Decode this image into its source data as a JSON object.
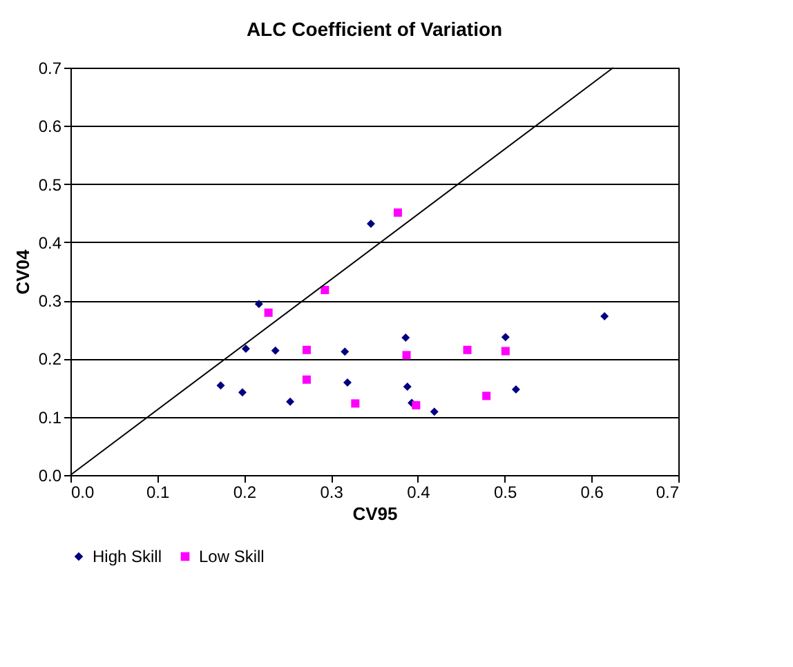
{
  "chart_data": {
    "type": "scatter",
    "title": "ALC Coefficient of Variation",
    "xlabel": "CV95",
    "ylabel": "CV04",
    "xlim": [
      0,
      0.7
    ],
    "xticks": [
      {
        "value": 0,
        "label": "0.0"
      },
      {
        "value": 0.1,
        "label": "0.1"
      },
      {
        "value": 0.2,
        "label": "0.2"
      },
      {
        "value": 0.3,
        "label": "0.3"
      },
      {
        "value": 0.4,
        "label": "0.4"
      },
      {
        "value": 0.5,
        "label": "0.5"
      },
      {
        "value": 0.6,
        "label": "0.6"
      },
      {
        "value": 0.7,
        "label": "0.7"
      }
    ],
    "ylim": [
      0,
      0.7
    ],
    "yticks": [
      {
        "value": 0,
        "label": "0.0"
      },
      0.1,
      0.2,
      0.3,
      0.4,
      0.5,
      0.6,
      0.7
    ],
    "grid": "y",
    "legend": "bottom",
    "series": [
      {
        "name": "High Skill",
        "color": "#000080",
        "marker": "diamond",
        "x": [
          0.346,
          0.217,
          0.202,
          0.236,
          0.316,
          0.386,
          0.173,
          0.198,
          0.253,
          0.319,
          0.388,
          0.393,
          0.419,
          0.615,
          0.501,
          0.513
        ],
        "values": [
          0.432,
          0.294,
          0.217,
          0.214,
          0.212,
          0.236,
          0.154,
          0.142,
          0.126,
          0.159,
          0.152,
          0.124,
          0.109,
          0.273,
          0.237,
          0.147
        ]
      },
      {
        "name": "Low Skill",
        "color": "#ff00ff",
        "marker": "square",
        "x": [
          0.377,
          0.293,
          0.228,
          0.272,
          0.387,
          0.272,
          0.328,
          0.398,
          0.457,
          0.501,
          0.479
        ],
        "values": [
          0.451,
          0.318,
          0.279,
          0.215,
          0.206,
          0.164,
          0.123,
          0.12,
          0.215,
          0.213,
          0.136
        ]
      },
      {
        "type": "line",
        "color": "#000000",
        "marker": "none",
        "line_style": "solid",
        "x": [
          0,
          0.625
        ],
        "values": [
          0,
          0.7
        ]
      }
    ]
  }
}
